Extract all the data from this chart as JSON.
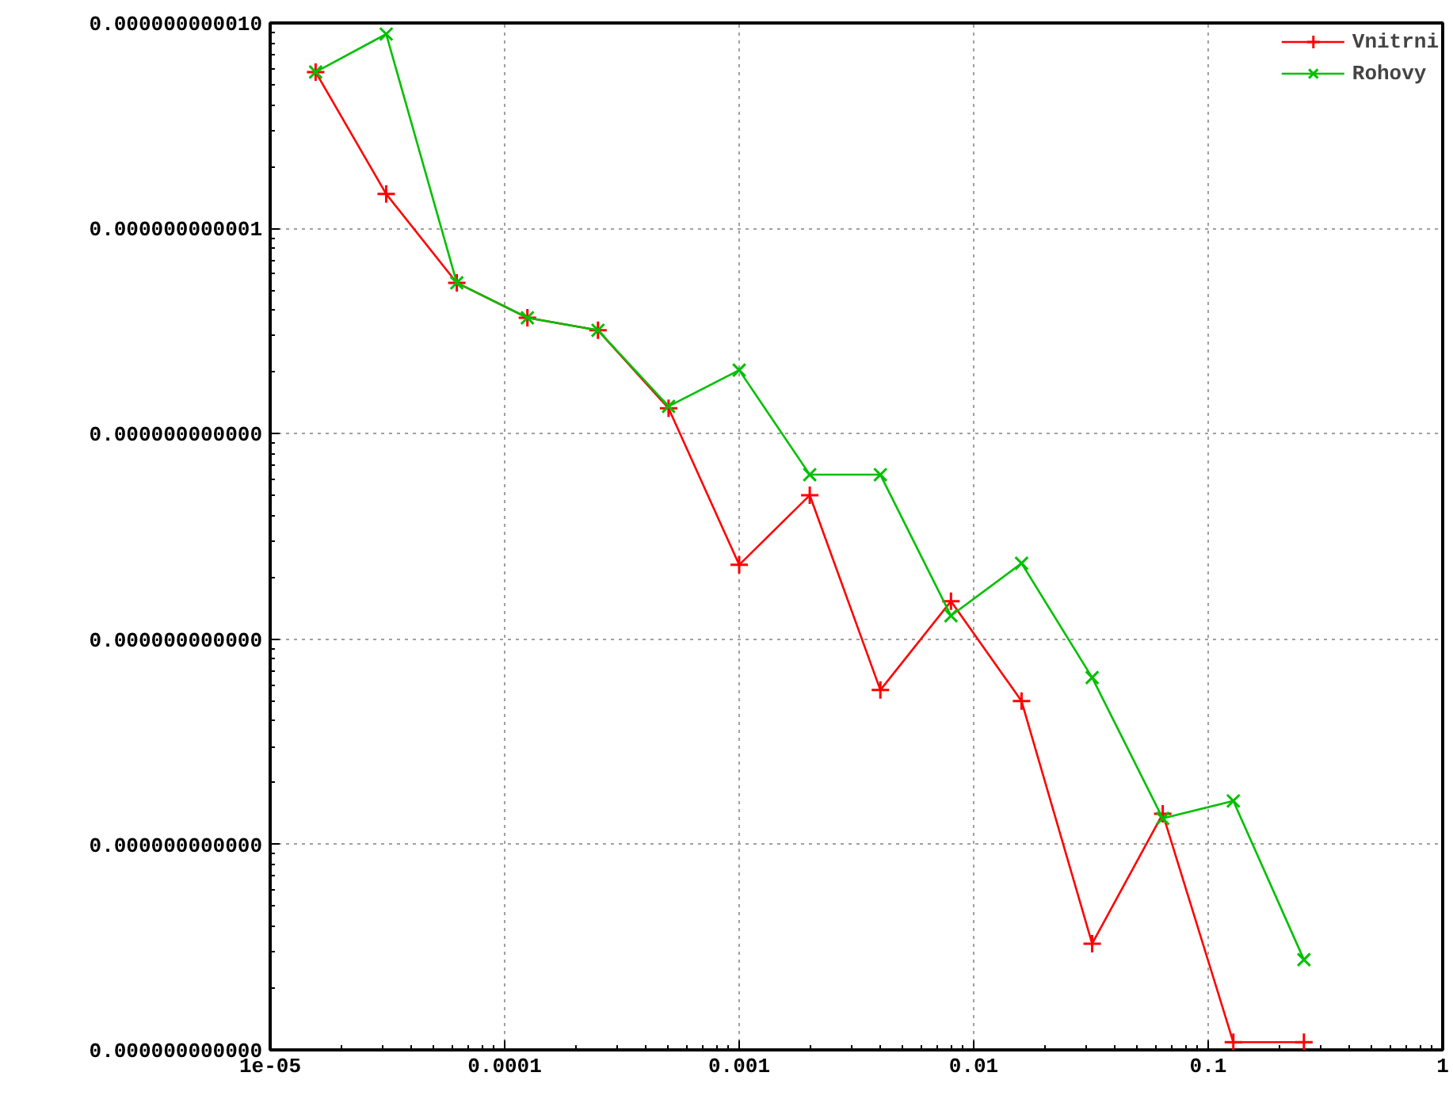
{
  "chart_data": {
    "type": "line",
    "log": "xy",
    "xlim": [
      1e-05,
      1
    ],
    "xticks": [
      {
        "value": 1e-05,
        "label": "1e-05"
      },
      {
        "value": 0.0001,
        "label": "0.0001"
      },
      {
        "value": 0.001,
        "label": "0.001"
      },
      {
        "value": 0.01,
        "label": "0.01"
      },
      {
        "value": 0.1,
        "label": "0.1"
      },
      {
        "value": 1,
        "label": "1"
      }
    ],
    "ylim": [
      1e-16,
      1e-11
    ],
    "yticks": [
      {
        "value": 1e-16,
        "label": "0.000000000000"
      },
      {
        "value": 1e-15,
        "label": "0.000000000000"
      },
      {
        "value": 1e-14,
        "label": "0.000000000000"
      },
      {
        "value": 1e-13,
        "label": "0.000000000000"
      },
      {
        "value": 1e-12,
        "label": "0.000000000001"
      },
      {
        "value": 1e-11,
        "label": "0.000000000010"
      }
    ],
    "x": [
      1.5625e-05,
      3.125e-05,
      6.25e-05,
      0.000125,
      0.00025,
      0.0005,
      0.001,
      0.002,
      0.004,
      0.008,
      0.016,
      0.032,
      0.064,
      0.128,
      0.256
    ],
    "grid": true,
    "legend": "top right",
    "line_style": "solid",
    "series": [
      {
        "name": "Vnitrni",
        "color": "#ff0000",
        "marker": "cross",
        "values": [
          5.77e-12,
          1.47e-12,
          5.43e-13,
          3.67e-13,
          3.19e-13,
          1.33e-13,
          2.3e-14,
          5.02e-14,
          5.65e-15,
          1.53e-14,
          4.99e-15,
          3.29e-16,
          1.41e-15,
          1.09e-16,
          1.09e-16
        ]
      },
      {
        "name": "Rohovy",
        "color": "#00c000",
        "marker": "x",
        "values": [
          5.77e-12,
          8.83e-12,
          5.43e-13,
          3.67e-13,
          3.19e-13,
          1.36e-13,
          2.04e-13,
          6.32e-14,
          6.32e-14,
          1.3e-14,
          2.34e-14,
          6.5e-15,
          1.34e-15,
          1.63e-15,
          2.75e-16
        ]
      }
    ]
  }
}
